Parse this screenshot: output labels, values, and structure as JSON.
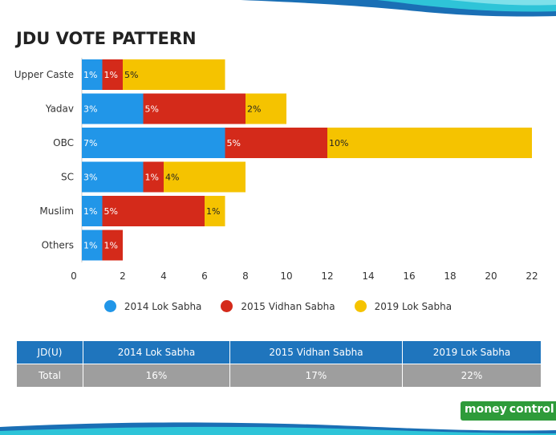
{
  "chart_data": {
    "type": "bar",
    "orientation": "horizontal",
    "stacked": true,
    "title": "JDU VOTE PATTERN",
    "categories": [
      "Upper Caste",
      "Yadav",
      "OBC",
      "SC",
      "Muslim",
      "Others"
    ],
    "series": [
      {
        "name": "2014 Lok Sabha",
        "color": "#2196e8",
        "values": [
          1,
          3,
          7,
          3,
          1,
          1
        ],
        "labels": [
          "1%",
          "3%",
          "7%",
          "3%",
          "1%",
          "1%"
        ]
      },
      {
        "name": "2015 Vidhan Sabha",
        "color": "#d42a1a",
        "values": [
          1,
          5,
          5,
          1,
          5,
          1
        ],
        "labels": [
          "1%",
          "5%",
          "5%",
          "1%",
          "5%",
          "1%"
        ]
      },
      {
        "name": "2019 Lok Sabha",
        "color": "#f5c300",
        "values": [
          5,
          2,
          10,
          4,
          1,
          0
        ],
        "labels": [
          "5%",
          "2%",
          "10%",
          "4%",
          "1%",
          ""
        ]
      }
    ],
    "xticks": [
      0,
      2,
      4,
      6,
      8,
      10,
      12,
      14,
      16,
      18,
      20,
      22
    ],
    "xlim": [
      0,
      22
    ],
    "grid": false,
    "legend_position": "bottom"
  },
  "table": {
    "headers": [
      "JD(U)",
      "2014 Lok Sabha",
      "2015 Vidhan Sabha",
      "2019 Lok Sabha"
    ],
    "rows": [
      [
        "Total",
        "16%",
        "17%",
        "22%"
      ]
    ]
  },
  "logo": {
    "part1": "money",
    "part2": "control"
  },
  "colors": {
    "header": "#1f75bd",
    "row": "#9e9e9e",
    "deco_dark": "#1a6fb5",
    "deco_light": "#2ec4d8"
  }
}
